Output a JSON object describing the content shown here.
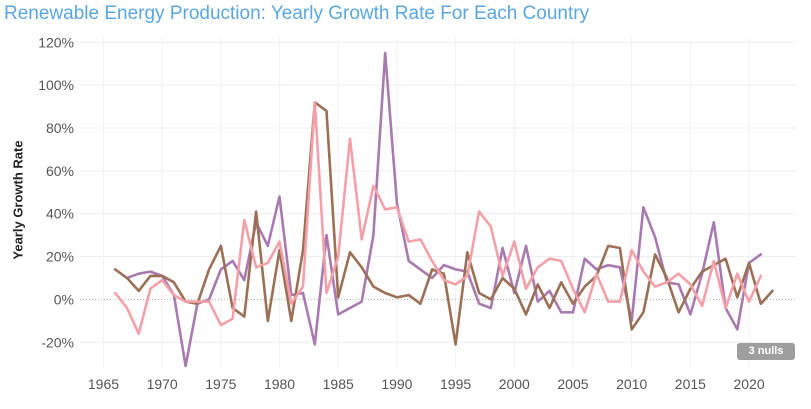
{
  "chart_data": {
    "type": "line",
    "title": "Renewable Energy Production: Yearly Growth Rate For Each Country",
    "ylabel": "Yearly Growth Rate",
    "xlabel": "",
    "xlim": [
      1963,
      2024
    ],
    "ylim": [
      -32,
      122
    ],
    "x_ticks": [
      1965,
      1970,
      1975,
      1980,
      1985,
      1990,
      1995,
      2000,
      2005,
      2010,
      2015,
      2020
    ],
    "y_ticks": [
      -20,
      0,
      20,
      40,
      60,
      80,
      100,
      120
    ],
    "y_tick_labels": [
      "-20%",
      "0%",
      "20%",
      "40%",
      "60%",
      "80%",
      "100%",
      "120%"
    ],
    "grid": true,
    "nulls_badge": "3 nulls",
    "series": [
      {
        "color": "#a87ab0",
        "points": [
          [
            1967,
            10
          ],
          [
            1968,
            12
          ],
          [
            1969,
            13
          ],
          [
            1970,
            11
          ],
          [
            1971,
            2
          ],
          [
            1972,
            -31
          ],
          [
            1973,
            -2
          ],
          [
            1974,
            0
          ],
          [
            1975,
            14
          ],
          [
            1976,
            18
          ],
          [
            1977,
            9
          ],
          [
            1978,
            36
          ],
          [
            1979,
            25
          ],
          [
            1980,
            48
          ],
          [
            1981,
            2
          ],
          [
            1982,
            3
          ],
          [
            1983,
            -21
          ],
          [
            1984,
            30
          ],
          [
            1985,
            -7
          ],
          [
            1986,
            -4
          ],
          [
            1987,
            -1
          ],
          [
            1988,
            30
          ],
          [
            1989,
            115
          ],
          [
            1990,
            45
          ],
          [
            1991,
            18
          ],
          [
            1992,
            14
          ],
          [
            1993,
            10
          ],
          [
            1994,
            16
          ],
          [
            1995,
            14
          ],
          [
            1996,
            13
          ],
          [
            1997,
            -2
          ],
          [
            1998,
            -4
          ],
          [
            1999,
            24
          ],
          [
            2000,
            3
          ],
          [
            2001,
            25
          ],
          [
            2002,
            -1
          ],
          [
            2003,
            4
          ],
          [
            2004,
            -6
          ],
          [
            2005,
            -6
          ],
          [
            2006,
            19
          ],
          [
            2007,
            14
          ],
          [
            2008,
            16
          ],
          [
            2009,
            15
          ],
          [
            2010,
            -10
          ],
          [
            2011,
            43
          ],
          [
            2012,
            29
          ],
          [
            2013,
            8
          ],
          [
            2014,
            7
          ],
          [
            2015,
            -7
          ],
          [
            2016,
            12
          ],
          [
            2017,
            36
          ],
          [
            2018,
            -4
          ],
          [
            2019,
            -14
          ],
          [
            2020,
            17
          ],
          [
            2021,
            21
          ]
        ]
      },
      {
        "color": "#9b7056",
        "points": [
          [
            1966,
            14
          ],
          [
            1967,
            10
          ],
          [
            1968,
            4
          ],
          [
            1969,
            11
          ],
          [
            1970,
            11
          ],
          [
            1971,
            8
          ],
          [
            1972,
            -1
          ],
          [
            1973,
            -2
          ],
          [
            1974,
            14
          ],
          [
            1975,
            25
          ],
          [
            1976,
            -4
          ],
          [
            1977,
            -8
          ],
          [
            1978,
            41
          ],
          [
            1979,
            -10
          ],
          [
            1980,
            23
          ],
          [
            1981,
            -10
          ],
          [
            1982,
            23
          ],
          [
            1983,
            92
          ],
          [
            1984,
            88
          ],
          [
            1985,
            1
          ],
          [
            1986,
            22
          ],
          [
            1987,
            15
          ],
          [
            1988,
            6
          ],
          [
            1989,
            3
          ],
          [
            1990,
            1
          ],
          [
            1991,
            2
          ],
          [
            1992,
            -2
          ],
          [
            1993,
            14
          ],
          [
            1994,
            12
          ],
          [
            1995,
            -21
          ],
          [
            1996,
            22
          ],
          [
            1997,
            3
          ],
          [
            1998,
            0
          ],
          [
            1999,
            10
          ],
          [
            2000,
            5
          ],
          [
            2001,
            -7
          ],
          [
            2002,
            7
          ],
          [
            2003,
            -4
          ],
          [
            2004,
            8
          ],
          [
            2005,
            -2
          ],
          [
            2006,
            6
          ],
          [
            2007,
            11
          ],
          [
            2008,
            25
          ],
          [
            2009,
            24
          ],
          [
            2010,
            -14
          ],
          [
            2011,
            -6
          ],
          [
            2012,
            21
          ],
          [
            2013,
            10
          ],
          [
            2014,
            -6
          ],
          [
            2015,
            5
          ],
          [
            2016,
            13
          ],
          [
            2017,
            16
          ],
          [
            2018,
            19
          ],
          [
            2019,
            1
          ],
          [
            2020,
            17
          ],
          [
            2021,
            -2
          ],
          [
            2022,
            4
          ]
        ]
      },
      {
        "color": "#f4a0a8",
        "points": [
          [
            1966,
            3
          ],
          [
            1967,
            -4
          ],
          [
            1968,
            -16
          ],
          [
            1969,
            5
          ],
          [
            1970,
            9
          ],
          [
            1971,
            2
          ],
          [
            1972,
            -1
          ],
          [
            1973,
            -1
          ],
          [
            1974,
            -1
          ],
          [
            1975,
            -12
          ],
          [
            1976,
            -9
          ],
          [
            1977,
            37
          ],
          [
            1978,
            15
          ],
          [
            1979,
            17
          ],
          [
            1980,
            27
          ],
          [
            1981,
            -2
          ],
          [
            1982,
            6
          ],
          [
            1983,
            92
          ],
          [
            1984,
            3
          ],
          [
            1985,
            20
          ],
          [
            1986,
            75
          ],
          [
            1987,
            28
          ],
          [
            1988,
            53
          ],
          [
            1989,
            42
          ],
          [
            1990,
            43
          ],
          [
            1991,
            27
          ],
          [
            1992,
            28
          ],
          [
            1993,
            18
          ],
          [
            1994,
            9
          ],
          [
            1995,
            7
          ],
          [
            1996,
            11
          ],
          [
            1997,
            41
          ],
          [
            1998,
            34
          ],
          [
            1999,
            11
          ],
          [
            2000,
            27
          ],
          [
            2001,
            5
          ],
          [
            2002,
            15
          ],
          [
            2003,
            19
          ],
          [
            2004,
            18
          ],
          [
            2005,
            5
          ],
          [
            2006,
            -6
          ],
          [
            2007,
            12
          ],
          [
            2008,
            -1
          ],
          [
            2009,
            -1
          ],
          [
            2010,
            23
          ],
          [
            2011,
            13
          ],
          [
            2012,
            6
          ],
          [
            2013,
            8
          ],
          [
            2014,
            12
          ],
          [
            2015,
            7
          ],
          [
            2016,
            -3
          ],
          [
            2017,
            18
          ],
          [
            2018,
            -4
          ],
          [
            2019,
            12
          ],
          [
            2020,
            -1
          ],
          [
            2021,
            11
          ]
        ]
      }
    ]
  }
}
